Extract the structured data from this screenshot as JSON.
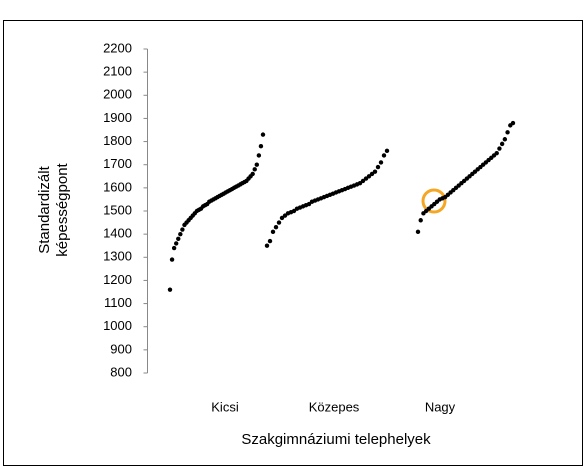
{
  "chart_data": {
    "type": "scatter",
    "categories": [
      "Kicsi",
      "Közepes",
      "Nagy"
    ],
    "xlabel": "Szakgimnáziumi telephelyek",
    "ylabel": [
      "Standardizált",
      "képességpont"
    ],
    "ylim": [
      800,
      2200
    ],
    "yticks": [
      800,
      900,
      1000,
      1100,
      1200,
      1300,
      1400,
      1500,
      1600,
      1700,
      1800,
      1900,
      2000,
      2100,
      2200
    ],
    "grid": false,
    "series": [
      {
        "color": "#000000",
        "values": [
          1160,
          1290,
          1340,
          1360,
          1380,
          1400,
          1420,
          1440,
          1450,
          1460,
          1470,
          1480,
          1490,
          1500,
          1505,
          1510,
          1520,
          1525,
          1530,
          1540,
          1545,
          1550,
          1555,
          1560,
          1565,
          1570,
          1575,
          1580,
          1585,
          1590,
          1595,
          1600,
          1605,
          1610,
          1615,
          1620,
          1625,
          1630,
          1640,
          1650,
          1660,
          1680,
          1700,
          1740,
          1780,
          1830
        ]
      },
      {
        "color": "#000000",
        "values": [
          1350,
          1370,
          1410,
          1430,
          1450,
          1470,
          1480,
          1490,
          1495,
          1500,
          1510,
          1515,
          1520,
          1525,
          1530,
          1540,
          1545,
          1550,
          1555,
          1560,
          1565,
          1570,
          1575,
          1580,
          1585,
          1590,
          1595,
          1600,
          1605,
          1610,
          1615,
          1620,
          1630,
          1640,
          1650,
          1660,
          1670,
          1690,
          1710,
          1740,
          1760
        ]
      },
      {
        "color": "#000000",
        "values": [
          1410,
          1460,
          1490,
          1500,
          1510,
          1520,
          1530,
          1540,
          1550,
          1555,
          1560,
          1570,
          1580,
          1590,
          1600,
          1610,
          1620,
          1630,
          1640,
          1650,
          1660,
          1670,
          1680,
          1690,
          1700,
          1710,
          1720,
          1730,
          1740,
          1750,
          1770,
          1790,
          1810,
          1840,
          1870,
          1880
        ]
      }
    ]
  }
}
